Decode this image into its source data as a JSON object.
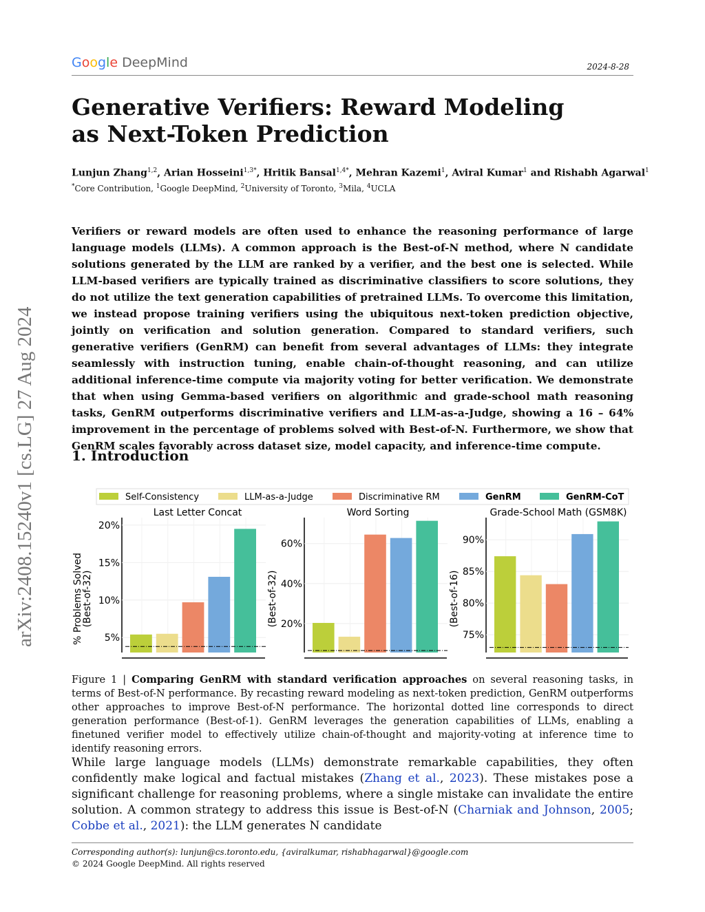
{
  "header": {
    "logo": "Google DeepMind",
    "date": "2024-8-28"
  },
  "title": "Generative Verifiers: Reward Modeling as Next-Token Prediction",
  "authors": [
    {
      "name": "Lunjun Zhang",
      "sup": "1,2"
    },
    {
      "name": "Arian Hosseini",
      "sup": "1,3*"
    },
    {
      "name": "Hritik Bansal",
      "sup": "1,4*"
    },
    {
      "name": "Mehran Kazemi",
      "sup": "1"
    },
    {
      "name": "Aviral Kumar",
      "sup": "1"
    },
    {
      "name": "Rishabh Agarwal",
      "sup": "1"
    }
  ],
  "affiliations": "*Core Contribution, 1Google DeepMind, 2University of Toronto, 3Mila, 4UCLA",
  "arxiv_stamp": "arXiv:2408.15240v1  [cs.LG]  27 Aug 2024",
  "abstract": "Verifiers or reward models are often used to enhance the reasoning performance of large language models (LLMs). A common approach is the Best-of-N method, where N candidate solutions generated by the LLM are ranked by a verifier, and the best one is selected. While LLM-based verifiers are typically trained as discriminative classifiers to score solutions, they do not utilize the text generation capabilities of pretrained LLMs. To overcome this limitation, we instead propose training verifiers using the ubiquitous next-token prediction objective, jointly on verification and solution generation. Compared to standard verifiers, such generative verifiers (GenRM) can benefit from several advantages of LLMs: they integrate seamlessly with instruction tuning, enable chain-of-thought reasoning, and can utilize additional inference-time compute via majority voting for better verification. We demonstrate that when using Gemma-based verifiers on algorithmic and grade-school math reasoning tasks, GenRM outperforms discriminative verifiers and LLM-as-a-Judge, showing a 16 – 64% improvement in the percentage of problems solved with Best-of-N. Furthermore, we show that GenRM scales favorably across dataset size, model capacity, and inference-time compute.",
  "section_title": "1.  Introduction",
  "chart_data": {
    "type": "bar",
    "legend": {
      "placement": "top",
      "entries": [
        "Self-Consistency",
        "LLM-as-a-Judge",
        "Discriminative RM",
        "GenRM",
        "GenRM-CoT"
      ],
      "colors": [
        "#bccf3a",
        "#ecdd8c",
        "#ec8766",
        "#74a9dc",
        "#45bf9a"
      ]
    },
    "panels": [
      {
        "title": "Last Letter Concat",
        "ylabel": "% Problems Solved\n(Best-of-32)",
        "ylabel_lines": [
          "% Problems Solved",
          "(Best-of-32)"
        ],
        "ylim": [
          3,
          21
        ],
        "ticks": [
          5,
          10,
          15,
          20
        ],
        "tick_labels": [
          "5%",
          "10%",
          "15%",
          "20%"
        ],
        "values": [
          5.4,
          5.5,
          9.7,
          13.1,
          19.5
        ],
        "baseline": 3.8
      },
      {
        "title": "Word Sorting",
        "ylabel_lines": [
          "(Best-of-32)"
        ],
        "ylim": [
          5.5,
          73
        ],
        "ticks": [
          20,
          40,
          60
        ],
        "tick_labels": [
          "20%",
          "40%",
          "60%"
        ],
        "values": [
          20.3,
          13.4,
          64.5,
          62.8,
          71.4
        ],
        "baseline": 6.5
      },
      {
        "title": "Grade-School Math (GSM8K)",
        "ylabel_lines": [
          "(Best-of-16)"
        ],
        "ylim": [
          72.2,
          93.5
        ],
        "ticks": [
          75,
          80,
          85,
          90
        ],
        "tick_labels": [
          "75%",
          "80%",
          "85%",
          "90%"
        ],
        "values": [
          87.4,
          84.4,
          83.0,
          90.9,
          92.9
        ],
        "baseline": 73.0
      }
    ]
  },
  "caption": {
    "label": "Figure 1 | ",
    "bold": "Comparing GenRM with standard verification approaches",
    "text": " on several reasoning tasks, in terms of Best-of-N performance. By recasting reward modeling as next-token prediction, GenRM outperforms other approaches to improve Best-of-N performance. The horizontal dotted line corresponds to direct generation performance (Best-of-1). GenRM leverages the generation capabilities of LLMs, enabling a finetuned verifier model to effectively utilize chain-of-thought and majority-voting at inference time to identify reasoning errors."
  },
  "body": {
    "t1": "While large language models (LLMs) demonstrate remarkable capabilities, they often confidently make logical and factual mistakes (",
    "c1": "Zhang et al.",
    "c1y": "2023",
    "t2": "). These mistakes pose a significant challenge for reasoning problems, where a single mistake can invalidate the entire solution. A common strategy to address this issue is Best-of-N (",
    "c2": "Charniak and Johnson",
    "c2y": "2005",
    "c3": "Cobbe et al.",
    "c3y": "2021",
    "t3": "): the LLM generates N candidate"
  },
  "footer": {
    "corresponding": "Corresponding author(s): lunjun@cs.toronto.edu, {aviralkumar, rishabhagarwal}@google.com",
    "copyright": "©  2024 Google DeepMind. All rights reserved"
  }
}
